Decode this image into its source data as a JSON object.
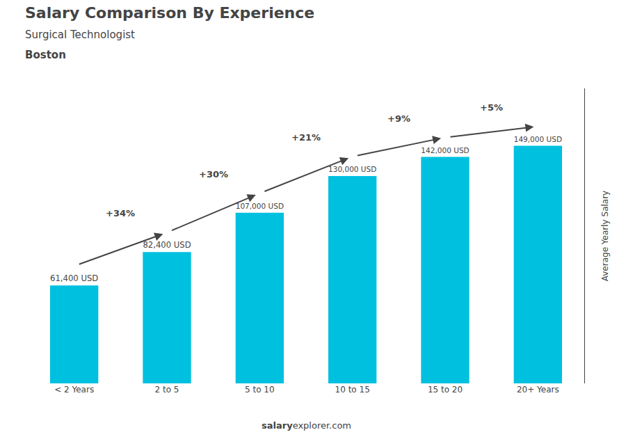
{
  "chart_data": {
    "type": "bar",
    "title": "Salary Comparison By Experience",
    "subtitle": [
      "Surgical Technologist",
      "Boston"
    ],
    "ylabel": "Average Yearly Salary",
    "categories": [
      "< 2 Years",
      "2 to 5",
      "5 to 10",
      "10 to 15",
      "15 to 20",
      "20+ Years"
    ],
    "values": [
      61400,
      82400,
      107000,
      130000,
      142000,
      149000
    ],
    "value_labels": [
      "61,400 USD",
      "82,400 USD",
      "107,000 USD",
      "130,000 USD",
      "142,000 USD",
      "149,000 USD"
    ],
    "data_labels": true,
    "color": "#00C0E0",
    "ylim": [
      0,
      185000
    ],
    "yticks": [],
    "tick_labels": "x",
    "grid": false,
    "annotations": [
      {
        "text": "+34%",
        "from": "< 2 Years",
        "to": "2 to 5"
      },
      {
        "text": "+30%",
        "from": "2 to 5",
        "to": "5 to 10"
      },
      {
        "text": "+21%",
        "from": "5 to 10",
        "to": "10 to 15"
      },
      {
        "text": "+9%",
        "from": "10 to 15",
        "to": "15 to 20"
      },
      {
        "text": "+5%",
        "from": "15 to 20",
        "to": "20+ Years"
      }
    ],
    "footer": [
      "salary",
      "explorer.com"
    ]
  }
}
